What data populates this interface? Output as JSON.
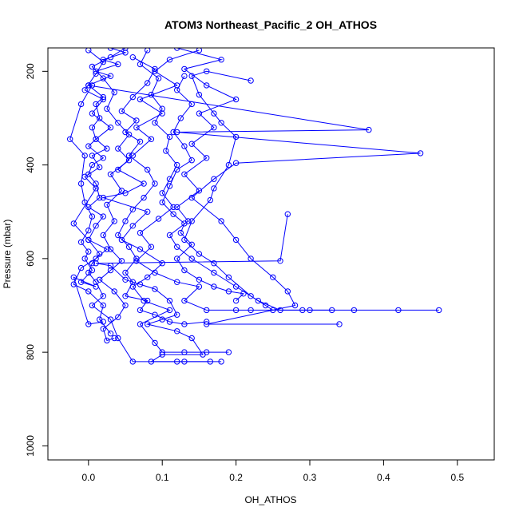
{
  "chart_data": {
    "type": "line",
    "title": "ATOM3 Northeast_Pacific_2 OH_ATHOS",
    "xlabel": "OH_ATHOS",
    "ylabel": "Pressure (mbar)",
    "xlim": [
      -0.055,
      0.55
    ],
    "ylim": [
      1030,
      150
    ],
    "y_reversed": true,
    "grid": false,
    "legend": "none",
    "x_ticks": [
      0,
      0.1,
      0.2,
      0.3,
      0.4,
      0.5
    ],
    "x_tick_labels": [
      "0.0",
      "0.1",
      "0.2",
      "0.3",
      "0.4",
      "0.5"
    ],
    "y_ticks": [
      200,
      400,
      600,
      800,
      1000
    ],
    "y_tick_labels": [
      "200",
      "400",
      "600",
      "800",
      "1000"
    ],
    "color": "#0000ff",
    "series": [
      {
        "points": [
          [
            0.03,
            150
          ],
          [
            0.05,
            160
          ],
          [
            0.02,
            175
          ],
          [
            0.04,
            185
          ],
          [
            0.01,
            200
          ],
          [
            0.03,
            210
          ],
          [
            0.0,
            230
          ],
          [
            0.02,
            255
          ],
          [
            0.01,
            270
          ],
          [
            0.015,
            300
          ],
          [
            0.005,
            320
          ],
          [
            0.01,
            345
          ],
          [
            0.0,
            360
          ],
          [
            0.02,
            385
          ],
          [
            0.005,
            400
          ],
          [
            0.0,
            420
          ],
          [
            0.01,
            440
          ],
          [
            0.015,
            470
          ],
          [
            0.0,
            490
          ],
          [
            0.02,
            510
          ],
          [
            0.01,
            530
          ],
          [
            0.0,
            560
          ],
          [
            0.015,
            590
          ],
          [
            0.005,
            610
          ],
          [
            0.0,
            630
          ],
          [
            0.01,
            650
          ],
          [
            0.02,
            680
          ],
          [
            0.005,
            700
          ],
          [
            0.03,
            730
          ],
          [
            0.04,
            770
          ],
          [
            0.06,
            820
          ],
          [
            0.12,
            820
          ],
          [
            0.18,
            820
          ]
        ]
      },
      {
        "points": [
          [
            0.15,
            155
          ],
          [
            0.11,
            175
          ],
          [
            0.09,
            200
          ],
          [
            0.12,
            230
          ],
          [
            0.07,
            260
          ],
          [
            0.1,
            290
          ],
          [
            0.065,
            320
          ],
          [
            0.085,
            345
          ],
          [
            0.06,
            380
          ],
          [
            0.04,
            410
          ],
          [
            0.075,
            440
          ],
          [
            0.05,
            460
          ],
          [
            0.02,
            470
          ],
          [
            0.08,
            500
          ],
          [
            0.06,
            530
          ],
          [
            0.045,
            560
          ],
          [
            0.07,
            580
          ],
          [
            0.1,
            610
          ],
          [
            0.08,
            640
          ],
          [
            0.06,
            660
          ],
          [
            0.075,
            690
          ],
          [
            0.11,
            710
          ],
          [
            0.07,
            740
          ],
          [
            0.09,
            780
          ],
          [
            0.1,
            800
          ],
          [
            0.13,
            800
          ],
          [
            0.16,
            800
          ],
          [
            0.19,
            800
          ]
        ]
      },
      {
        "points": [
          [
            0.12,
            150
          ],
          [
            0.18,
            175
          ],
          [
            0.13,
            195
          ],
          [
            0.16,
            230
          ],
          [
            0.2,
            260
          ],
          [
            0.15,
            290
          ],
          [
            0.17,
            320
          ],
          [
            0.14,
            355
          ],
          [
            0.16,
            385
          ],
          [
            0.13,
            420
          ],
          [
            0.15,
            455
          ],
          [
            0.12,
            490
          ],
          [
            0.135,
            520
          ],
          [
            0.11,
            550
          ],
          [
            0.12,
            575
          ],
          [
            0.14,
            600
          ],
          [
            0.17,
            630
          ],
          [
            0.2,
            660
          ],
          [
            0.23,
            690
          ],
          [
            0.26,
            710
          ],
          [
            0.3,
            710
          ],
          [
            0.36,
            710
          ],
          [
            0.42,
            710
          ],
          [
            0.475,
            710
          ]
        ]
      },
      {
        "points": [
          [
            0.0,
            230
          ],
          [
            0.38,
            325
          ],
          [
            0.12,
            330
          ],
          [
            0.45,
            375
          ],
          [
            0.2,
            396
          ],
          [
            0.17,
            430
          ],
          [
            0.14,
            470
          ],
          [
            0.18,
            520
          ],
          [
            0.2,
            560
          ],
          [
            0.22,
            600
          ],
          [
            0.25,
            640
          ],
          [
            0.27,
            670
          ],
          [
            0.28,
            700
          ],
          [
            0.16,
            740
          ],
          [
            0.34,
            740
          ]
        ]
      },
      {
        "points": [
          [
            0.22,
            220
          ],
          [
            0.16,
            200
          ],
          [
            0.14,
            210
          ],
          [
            0.15,
            250
          ],
          [
            0.17,
            290
          ],
          [
            0.18,
            310
          ],
          [
            0.2,
            340
          ],
          [
            0.19,
            400
          ],
          [
            0.17,
            450
          ],
          [
            0.165,
            475
          ],
          [
            0.14,
            520
          ],
          [
            0.13,
            560
          ],
          [
            0.15,
            590
          ],
          [
            0.17,
            610
          ],
          [
            0.19,
            640
          ],
          [
            0.22,
            680
          ],
          [
            0.24,
            700
          ],
          [
            0.25,
            710
          ]
        ]
      },
      {
        "points": [
          [
            0.27,
            505
          ],
          [
            0.26,
            605
          ],
          [
            0.01,
            610
          ],
          [
            0.03,
            615
          ],
          [
            0.05,
            645
          ],
          [
            0.07,
            655
          ],
          [
            0.09,
            665
          ],
          [
            0.11,
            690
          ],
          [
            0.12,
            720
          ],
          [
            0.1,
            730
          ],
          [
            0.08,
            740
          ],
          [
            0.12,
            755
          ],
          [
            0.14,
            770
          ],
          [
            0.155,
            805
          ],
          [
            0.1,
            805
          ],
          [
            0.085,
            820
          ],
          [
            0.13,
            820
          ],
          [
            0.165,
            820
          ]
        ]
      },
      {
        "points": [
          [
            0.05,
            150
          ],
          [
            0.03,
            170
          ],
          [
            0.005,
            190
          ],
          [
            0.02,
            215
          ],
          [
            0.035,
            245
          ],
          [
            0.025,
            280
          ],
          [
            0.04,
            310
          ],
          [
            0.055,
            335
          ],
          [
            0.04,
            365
          ],
          [
            0.055,
            390
          ],
          [
            0.03,
            420
          ],
          [
            0.045,
            455
          ],
          [
            0.025,
            485
          ],
          [
            0.035,
            520
          ],
          [
            0.02,
            550
          ],
          [
            0.03,
            580
          ],
          [
            0.045,
            605
          ],
          [
            0.03,
            625
          ],
          [
            0.015,
            645
          ],
          [
            0.035,
            670
          ],
          [
            0.05,
            700
          ],
          [
            0.04,
            725
          ],
          [
            0.02,
            750
          ],
          [
            0.025,
            775
          ],
          [
            0.035,
            770
          ]
        ]
      },
      {
        "points": [
          [
            0.0,
            155
          ],
          [
            0.02,
            180
          ],
          [
            0.01,
            205
          ],
          [
            -0.005,
            240
          ],
          [
            0.02,
            260
          ],
          [
            0.005,
            290
          ],
          [
            0.03,
            320
          ],
          [
            0.01,
            345
          ],
          [
            0.025,
            365
          ],
          [
            0.005,
            380
          ],
          [
            0.015,
            405
          ],
          [
            -0.005,
            425
          ],
          [
            0.01,
            450
          ],
          [
            -0.02,
            525
          ],
          [
            0.0,
            560
          ],
          [
            0.025,
            580
          ],
          [
            0.01,
            600
          ],
          [
            -0.01,
            620
          ],
          [
            -0.02,
            655
          ],
          [
            0.0,
            670
          ],
          [
            0.02,
            700
          ],
          [
            0.015,
            730
          ],
          [
            0.03,
            760
          ]
        ]
      },
      {
        "points": [
          [
            0.08,
            155
          ],
          [
            0.07,
            185
          ],
          [
            0.095,
            215
          ],
          [
            0.085,
            250
          ],
          [
            0.1,
            280
          ],
          [
            0.09,
            310
          ],
          [
            0.11,
            340
          ],
          [
            0.105,
            370
          ],
          [
            0.12,
            400
          ],
          [
            0.11,
            430
          ],
          [
            0.1,
            460
          ],
          [
            0.115,
            490
          ],
          [
            0.095,
            515
          ],
          [
            0.07,
            545
          ],
          [
            0.085,
            575
          ],
          [
            0.065,
            605
          ],
          [
            0.09,
            630
          ],
          [
            0.12,
            650
          ],
          [
            0.15,
            660
          ],
          [
            0.13,
            690
          ],
          [
            0.16,
            710
          ],
          [
            0.2,
            710
          ],
          [
            0.22,
            710
          ],
          [
            0.29,
            710
          ],
          [
            0.33,
            710
          ]
        ]
      },
      {
        "points": [
          [
            0.06,
            170
          ],
          [
            0.09,
            195
          ],
          [
            0.08,
            225
          ],
          [
            0.06,
            255
          ],
          [
            0.045,
            285
          ],
          [
            0.065,
            305
          ],
          [
            0.05,
            330
          ],
          [
            0.07,
            350
          ],
          [
            0.055,
            380
          ],
          [
            0.08,
            410
          ],
          [
            0.09,
            440
          ],
          [
            0.075,
            470
          ],
          [
            0.06,
            495
          ],
          [
            0.05,
            520
          ],
          [
            0.04,
            550
          ],
          [
            0.055,
            575
          ],
          [
            0.065,
            600
          ],
          [
            0.05,
            630
          ],
          [
            0.06,
            650
          ],
          [
            0.05,
            680
          ],
          [
            0.08,
            690
          ],
          [
            0.07,
            710
          ],
          [
            0.09,
            720
          ],
          [
            0.11,
            735
          ],
          [
            0.13,
            740
          ],
          [
            0.16,
            735
          ]
        ]
      },
      {
        "points": [
          [
            0.005,
            230
          ],
          [
            -0.01,
            270
          ],
          [
            -0.025,
            345
          ],
          [
            -0.005,
            380
          ],
          [
            -0.01,
            440
          ],
          [
            -0.005,
            480
          ],
          [
            0.005,
            510
          ],
          [
            0.0,
            540
          ],
          [
            -0.01,
            565
          ],
          [
            0.0,
            585
          ],
          [
            -0.005,
            600
          ],
          [
            0.005,
            625
          ],
          [
            -0.01,
            650
          ],
          [
            0.01,
            660
          ],
          [
            -0.02,
            640
          ],
          [
            0.0,
            740
          ],
          [
            0.02,
            735
          ]
        ]
      },
      {
        "points": [
          [
            0.13,
            210
          ],
          [
            0.12,
            240
          ],
          [
            0.14,
            270
          ],
          [
            0.125,
            300
          ],
          [
            0.115,
            330
          ],
          [
            0.13,
            360
          ],
          [
            0.14,
            390
          ],
          [
            0.12,
            410
          ],
          [
            0.11,
            445
          ],
          [
            0.1,
            480
          ],
          [
            0.115,
            505
          ],
          [
            0.13,
            525
          ],
          [
            0.125,
            545
          ],
          [
            0.14,
            570
          ],
          [
            0.12,
            600
          ],
          [
            0.13,
            625
          ],
          [
            0.15,
            645
          ],
          [
            0.17,
            660
          ],
          [
            0.19,
            670
          ],
          [
            0.21,
            675
          ],
          [
            0.2,
            690
          ]
        ]
      }
    ]
  }
}
